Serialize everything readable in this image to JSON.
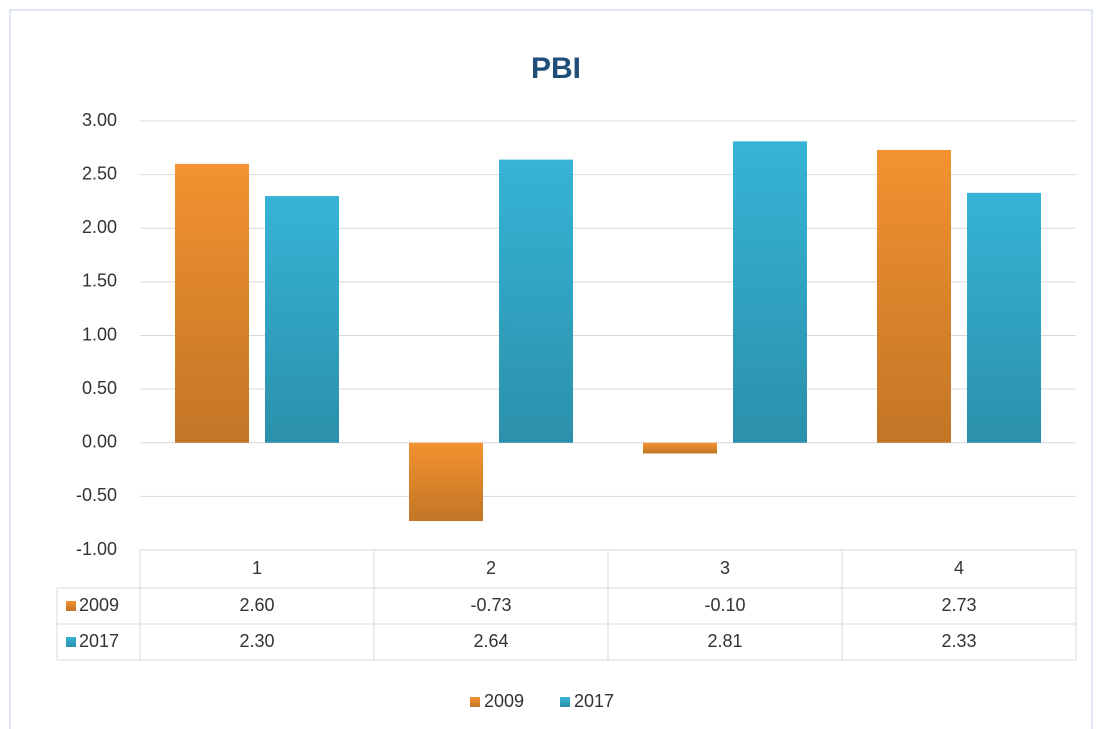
{
  "chart_data": {
    "type": "bar",
    "title": "PBI",
    "categories": [
      "1",
      "2",
      "3",
      "4"
    ],
    "series": [
      {
        "name": "2009",
        "color": "#f39230",
        "values": [
          2.6,
          -0.73,
          -0.1,
          2.73
        ],
        "value_labels": [
          "2.60",
          "-0.73",
          "-0.10",
          "2.73"
        ]
      },
      {
        "name": "2017",
        "color": "#36b4d6",
        "values": [
          2.3,
          2.64,
          2.81,
          2.33
        ],
        "value_labels": [
          "2.30",
          "2.64",
          "2.81",
          "2.33"
        ]
      }
    ],
    "ylim": [
      -1,
      3
    ],
    "yticks": [
      {
        "value": -1,
        "label": "-1.00"
      },
      {
        "value": -0.5,
        "label": "-0.50"
      },
      {
        "value": 0,
        "label": "0.00"
      },
      {
        "value": 0.5,
        "label": "0.50"
      },
      {
        "value": 1,
        "label": "1.00"
      },
      {
        "value": 1.5,
        "label": "1.50"
      },
      {
        "value": 2,
        "label": "2.00"
      },
      {
        "value": 2.5,
        "label": "2.50"
      },
      {
        "value": 3,
        "label": "3.00"
      }
    ],
    "grid": true,
    "legend": "bottom",
    "data_table": true
  }
}
